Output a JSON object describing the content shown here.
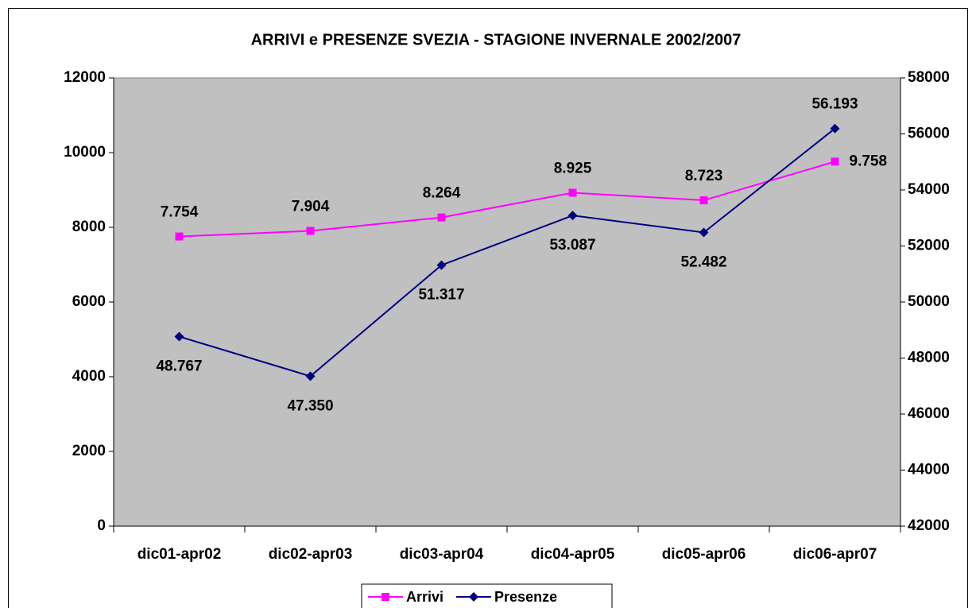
{
  "chart_data": {
    "type": "line",
    "title": "ARRIVI e PRESENZE SVEZIA - STAGIONE INVERNALE 2002/2007",
    "categories": [
      "dic01-apr02",
      "dic02-apr03",
      "dic03-apr04",
      "dic04-apr05",
      "dic05-apr06",
      "dic06-apr07"
    ],
    "series": [
      {
        "name": "Arrivi",
        "color": "#ff00ff",
        "marker": "square",
        "values": [
          7754,
          7904,
          8264,
          8925,
          8723,
          9758
        ],
        "value_labels": [
          "7.754",
          "7.904",
          "8.264",
          "8.925",
          "8.723",
          "9.758"
        ]
      },
      {
        "name": "Presenze",
        "color": "#000080",
        "marker": "diamond",
        "axis": "y2",
        "values": [
          48767,
          47350,
          51317,
          53087,
          52482,
          56193
        ],
        "value_labels": [
          "48.767",
          "47.350",
          "51.317",
          "53.087",
          "52.482",
          "56.193"
        ]
      }
    ],
    "ylim": [
      0,
      12000
    ],
    "yticks": [
      0,
      2000,
      4000,
      6000,
      8000,
      10000,
      12000
    ],
    "y2lim": [
      42000,
      58000
    ],
    "y2ticks": [
      42000,
      44000,
      46000,
      48000,
      50000,
      52000,
      54000,
      56000,
      58000
    ],
    "legend": "bottom",
    "plot_background": "#c0c0c0"
  }
}
